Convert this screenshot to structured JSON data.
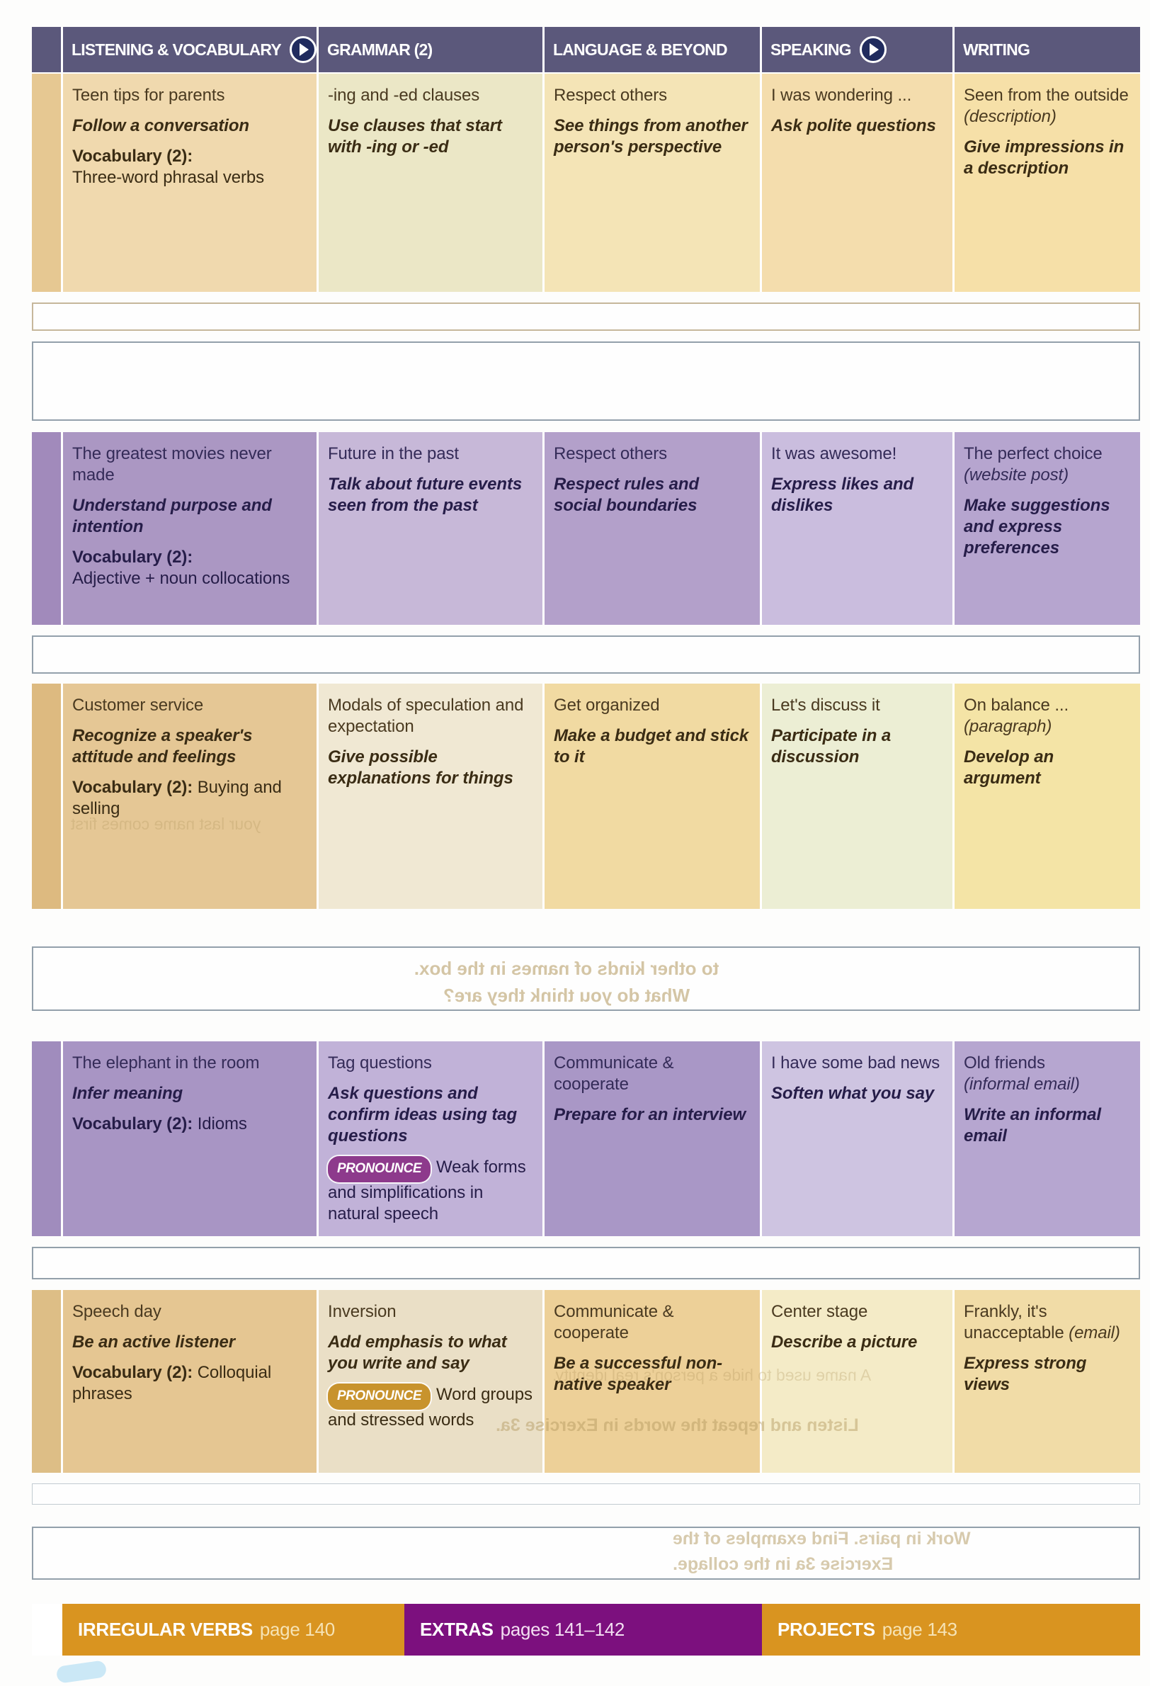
{
  "labels": {
    "pronounce": "PRONOUNCE"
  },
  "header": {
    "columns": [
      {
        "label": "LISTENING & VOCABULARY",
        "has_play": true
      },
      {
        "label": "GRAMMAR (2)",
        "has_play": false
      },
      {
        "label": "LANGUAGE & BEYOND",
        "has_play": false
      },
      {
        "label": "SPEAKING",
        "has_play": true
      },
      {
        "label": "WRITING",
        "has_play": false
      }
    ]
  },
  "units": [
    {
      "listening": {
        "title": "Teen tips for parents",
        "skill": "Follow a conversation",
        "vocab_label": "Vocabulary (2):",
        "vocab": "Three-word phrasal verbs"
      },
      "grammar": {
        "title": "-ing and -ed clauses",
        "skill": "Use clauses that start with -ing or -ed"
      },
      "language": {
        "title": "Respect others",
        "skill": "See things from another person's perspective"
      },
      "speaking": {
        "title": "I was wondering ...",
        "skill": "Ask polite questions"
      },
      "writing": {
        "title": "Seen from the outside",
        "genre": "(description)",
        "skill": "Give impressions in a description"
      }
    },
    {
      "listening": {
        "title": "The greatest movies never made",
        "skill": "Understand purpose and intention",
        "vocab_label": "Vocabulary (2):",
        "vocab": "Adjective + noun collocations"
      },
      "grammar": {
        "title": "Future in the past",
        "skill": "Talk about future events seen from the past"
      },
      "language": {
        "title": "Respect others",
        "skill": "Respect rules and social boundaries"
      },
      "speaking": {
        "title": "It was awesome!",
        "skill": "Express likes and dislikes"
      },
      "writing": {
        "title": "The perfect choice",
        "genre": "(website post)",
        "skill": "Make suggestions and express preferences"
      }
    },
    {
      "listening": {
        "title": "Customer service",
        "skill": "Recognize a speaker's attitude and feelings",
        "vocab_label": "Vocabulary (2):",
        "vocab": "Buying and selling"
      },
      "grammar": {
        "title": "Modals of speculation and expectation",
        "skill": "Give possible explanations for things"
      },
      "language": {
        "title": "Get organized",
        "skill": "Make a budget and stick to it"
      },
      "speaking": {
        "title": "Let's discuss it",
        "skill": "Participate in a discussion"
      },
      "writing": {
        "title": "On balance ...",
        "genre": "(paragraph)",
        "skill": "Develop an argument"
      }
    },
    {
      "listening": {
        "title": "The elephant in the room",
        "skill": "Infer meaning",
        "vocab_label": "Vocabulary (2):",
        "vocab": "Idioms"
      },
      "grammar": {
        "title": "Tag questions",
        "skill": "Ask questions and confirm ideas using tag questions",
        "pronounce": "Weak forms and simplifications in natural speech"
      },
      "language": {
        "title": "Communicate & cooperate",
        "skill": "Prepare for an interview"
      },
      "speaking": {
        "title": "I have some bad news",
        "skill": "Soften what you say"
      },
      "writing": {
        "title": "Old friends",
        "genre": "(informal email)",
        "skill": "Write an informal email"
      }
    },
    {
      "listening": {
        "title": "Speech day",
        "skill": "Be an active listener",
        "vocab_label": "Vocabulary (2):",
        "vocab": "Colloquial phrases"
      },
      "grammar": {
        "title": "Inversion",
        "skill": "Add emphasis to what you write and say",
        "pronounce": "Word groups and stressed words"
      },
      "language": {
        "title": "Communicate & cooperate",
        "skill": "Be a successful non-native speaker"
      },
      "speaking": {
        "title": "Center stage",
        "skill": "Describe a picture"
      },
      "writing": {
        "title": "Frankly, it's unacceptable",
        "genre": "(email)",
        "skill": "Express strong views"
      }
    }
  ],
  "footer": {
    "items": [
      {
        "label": "IRREGULAR VERBS",
        "pages": "page 140",
        "color": "orange"
      },
      {
        "label": "EXTRAS",
        "pages": "pages 141–142",
        "color": "purple"
      },
      {
        "label": "PROJECTS",
        "pages": "page 143",
        "color": "orange"
      }
    ]
  },
  "bleedthrough": [
    "your last name comes first",
    "to other kinds of names in the box.",
    "What do you think they are?",
    "A name used to hide a person's real identity.",
    "Listen and repeat the words in Exercise 3a.",
    "Work in pairs. Find examples of the",
    "Exercise 3a in the collage."
  ],
  "colors": {
    "header_bg": "#5B587B",
    "play_icon": "#202B5E",
    "orange_row": "#F0D9AE",
    "purple_row": "#AB97C3",
    "pronounce_purple": "#8D3A8C",
    "pronounce_orange": "#C8932D",
    "footer_orange": "#D99420",
    "footer_purple": "#7C107E"
  }
}
